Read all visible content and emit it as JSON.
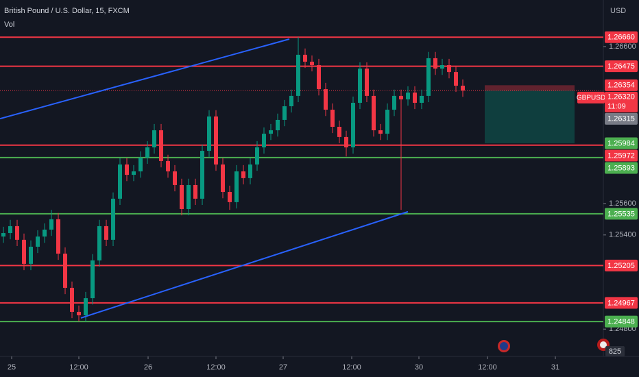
{
  "chart_data": {
    "type": "candlestick",
    "title": "British Pound / U.S. Dollar, 15, FXCM",
    "subtitle": "Vol",
    "currency": "USD",
    "volume_badge": "825",
    "up_color": "#089981",
    "down_color": "#f23645",
    "x": [
      0,
      1,
      2,
      3,
      4,
      5,
      6,
      7,
      8,
      9,
      10,
      11,
      12,
      13,
      14,
      15,
      16,
      17,
      18,
      19,
      20,
      21,
      22,
      23,
      24,
      25,
      26,
      27,
      28,
      29,
      30,
      31,
      32,
      33,
      34,
      35,
      36,
      37,
      38,
      39,
      40,
      41,
      42,
      43,
      44,
      45,
      46,
      47,
      48,
      49,
      50,
      51,
      52,
      53,
      54,
      55,
      56,
      57,
      58,
      59,
      60,
      61,
      62,
      63,
      64,
      65,
      66,
      67
    ],
    "candles": [
      [
        1.2539,
        1.25452,
        1.2535,
        1.25412
      ],
      [
        1.25412,
        1.25496,
        1.25372,
        1.25456
      ],
      [
        1.25456,
        1.25496,
        1.25329,
        1.25369
      ],
      [
        1.25369,
        1.25409,
        1.25176,
        1.25216
      ],
      [
        1.25216,
        1.25365,
        1.25176,
        1.25325
      ],
      [
        1.25325,
        1.2543,
        1.25285,
        1.2539
      ],
      [
        1.2539,
        1.25474,
        1.2535,
        1.25434
      ],
      [
        1.25434,
        1.2556,
        1.25394,
        1.255
      ],
      [
        1.255,
        1.2554,
        1.25241,
        1.25281
      ],
      [
        1.25281,
        1.25321,
        1.25023,
        1.25063
      ],
      [
        1.25063,
        1.25103,
        1.2487,
        1.2491
      ],
      [
        1.2491,
        1.2495,
        1.2485,
        1.24888
      ],
      [
        1.24888,
        1.25037,
        1.24848,
        1.24997
      ],
      [
        1.24997,
        1.25278,
        1.24957,
        1.25238
      ],
      [
        1.25238,
        1.25496,
        1.25198,
        1.25456
      ],
      [
        1.25456,
        1.25496,
        1.25329,
        1.25369
      ],
      [
        1.25369,
        1.25671,
        1.25329,
        1.25631
      ],
      [
        1.25631,
        1.25889,
        1.25591,
        1.25849
      ],
      [
        1.25849,
        1.25889,
        1.25743,
        1.25783
      ],
      [
        1.25783,
        1.25845,
        1.25743,
        1.25805
      ],
      [
        1.25805,
        1.25933,
        1.25765,
        1.25893
      ],
      [
        1.25893,
        1.25998,
        1.25853,
        1.25958
      ],
      [
        1.25958,
        1.26107,
        1.25918,
        1.26067
      ],
      [
        1.26067,
        1.26107,
        1.25831,
        1.25871
      ],
      [
        1.25871,
        1.25911,
        1.25765,
        1.25805
      ],
      [
        1.25805,
        1.25845,
        1.25678,
        1.25718
      ],
      [
        1.25718,
        1.25758,
        1.25525,
        1.25565
      ],
      [
        1.25565,
        1.25758,
        1.25525,
        1.25718
      ],
      [
        1.25718,
        1.25758,
        1.25591,
        1.25631
      ],
      [
        1.25631,
        1.25976,
        1.25591,
        1.25936
      ],
      [
        1.25936,
        1.26195,
        1.25896,
        1.26155
      ],
      [
        1.26155,
        1.26195,
        1.25809,
        1.25849
      ],
      [
        1.25849,
        1.25889,
        1.25634,
        1.25674
      ],
      [
        1.25674,
        1.25714,
        1.2556,
        1.25609
      ],
      [
        1.25609,
        1.25845,
        1.25569,
        1.25805
      ],
      [
        1.25805,
        1.25845,
        1.25722,
        1.25762
      ],
      [
        1.25762,
        1.25889,
        1.25722,
        1.25849
      ],
      [
        1.25849,
        1.25998,
        1.25809,
        1.25958
      ],
      [
        1.25958,
        1.26085,
        1.25918,
        1.26045
      ],
      [
        1.26045,
        1.26107,
        1.26005,
        1.26067
      ],
      [
        1.26067,
        1.26173,
        1.26027,
        1.26133
      ],
      [
        1.26133,
        1.2626,
        1.26093,
        1.2622
      ],
      [
        1.2622,
        1.26326,
        1.2618,
        1.26286
      ],
      [
        1.26286,
        1.2666,
        1.26246,
        1.26548
      ],
      [
        1.26548,
        1.26588,
        1.26464,
        1.26504
      ],
      [
        1.26504,
        1.26544,
        1.26442,
        1.26482
      ],
      [
        1.26482,
        1.26522,
        1.26289,
        1.26329
      ],
      [
        1.26329,
        1.26369,
        1.26158,
        1.26198
      ],
      [
        1.26198,
        1.26238,
        1.26049,
        1.26089
      ],
      [
        1.26089,
        1.26129,
        1.25984,
        1.26024
      ],
      [
        1.26024,
        1.26064,
        1.259,
        1.25958
      ],
      [
        1.25958,
        1.26282,
        1.25918,
        1.26242
      ],
      [
        1.26242,
        1.265,
        1.26202,
        1.2646
      ],
      [
        1.2646,
        1.265,
        1.26246,
        1.26286
      ],
      [
        1.26286,
        1.26326,
        1.26027,
        1.26067
      ],
      [
        1.26067,
        1.26107,
        1.26005,
        1.26045
      ],
      [
        1.26045,
        1.26238,
        1.26005,
        1.26198
      ],
      [
        1.26198,
        1.26326,
        1.26158,
        1.26286
      ],
      [
        1.26286,
        1.26326,
        1.2556,
        1.26264
      ],
      [
        1.26264,
        1.26347,
        1.26224,
        1.26307
      ],
      [
        1.26307,
        1.26347,
        1.26202,
        1.26242
      ],
      [
        1.26242,
        1.26326,
        1.26202,
        1.26286
      ],
      [
        1.26286,
        1.26566,
        1.26246,
        1.26526
      ],
      [
        1.26526,
        1.26566,
        1.2642,
        1.2646
      ],
      [
        1.2646,
        1.26522,
        1.2642,
        1.26482
      ],
      [
        1.26482,
        1.26522,
        1.26398,
        1.26438
      ],
      [
        1.26438,
        1.26478,
        1.26311,
        1.26351
      ],
      [
        1.26351,
        1.26391,
        1.2628,
        1.2632
      ]
    ],
    "xlim": [
      -0.5,
      87.5
    ],
    "xticks": [
      {
        "value": 1.2,
        "label": "25"
      },
      {
        "value": 11,
        "label": "12:00"
      },
      {
        "value": 21.1,
        "label": "26"
      },
      {
        "value": 31,
        "label": "12:00"
      },
      {
        "value": 40.8,
        "label": "27"
      },
      {
        "value": 50.8,
        "label": "12:00"
      },
      {
        "value": 60.6,
        "label": "30"
      },
      {
        "value": 70.6,
        "label": "12:00"
      },
      {
        "value": 80.5,
        "label": "31"
      }
    ],
    "ylim": [
      1.24626,
      1.26897
    ],
    "yticks": [
      {
        "value": 1.266,
        "label": "1.26600"
      },
      {
        "value": 1.256,
        "label": "1.25600"
      },
      {
        "value": 1.254,
        "label": "1.25400"
      },
      {
        "value": 1.248,
        "label": "1.24800"
      }
    ],
    "levels": [
      {
        "value": 1.2666,
        "color": "#f23645"
      },
      {
        "value": 1.26475,
        "color": "#f23645"
      },
      {
        "value": 1.25972,
        "color": "#f23645"
      },
      {
        "value": 1.25893,
        "color": "#4caf50"
      },
      {
        "value": 1.25535,
        "color": "#4caf50"
      },
      {
        "value": 1.25205,
        "color": "#f23645"
      },
      {
        "value": 1.24967,
        "color": "#f23645"
      },
      {
        "value": 1.24848,
        "color": "#4caf50"
      }
    ],
    "trendlines": [
      {
        "x": [
          -0.5,
          41.7
        ],
        "values": [
          1.26141,
          1.26648
        ],
        "color": "#2962ff"
      },
      {
        "x": [
          11.3,
          59.0
        ],
        "values": [
          1.24871,
          1.25548
        ],
        "color": "#2962ff"
      }
    ],
    "position": {
      "x": [
        70.2,
        83.3
      ],
      "stop": 1.26354,
      "entry": 1.2632,
      "target": 1.25984
    },
    "current_price": {
      "value": 1.2632,
      "label": "1.26320",
      "symbol": "GBPUSD",
      "countdown": "11:09",
      "color": "#f23645"
    },
    "price_labels": [
      {
        "value": 1.2666,
        "label": "1.26660",
        "color": "#f23645"
      },
      {
        "value": 1.26475,
        "label": "1.26475",
        "color": "#f23645"
      },
      {
        "value": 1.26354,
        "label": "1.26354",
        "color": "#f23645"
      },
      {
        "value": 1.26315,
        "label": "1.26315",
        "color": "#787b86"
      },
      {
        "value": 1.25984,
        "label": "1.25984",
        "color": "#4caf50"
      },
      {
        "value": 1.25972,
        "label": "1.25972",
        "color": "#f23645"
      },
      {
        "value": 1.25893,
        "label": "1.25893",
        "color": "#4caf50"
      },
      {
        "value": 1.25535,
        "label": "1.25535",
        "color": "#4caf50"
      },
      {
        "value": 1.25205,
        "label": "1.25205",
        "color": "#f23645"
      },
      {
        "value": 1.24967,
        "label": "1.24967",
        "color": "#f23645"
      },
      {
        "value": 1.24848,
        "label": "1.24848",
        "color": "#4caf50"
      }
    ]
  }
}
